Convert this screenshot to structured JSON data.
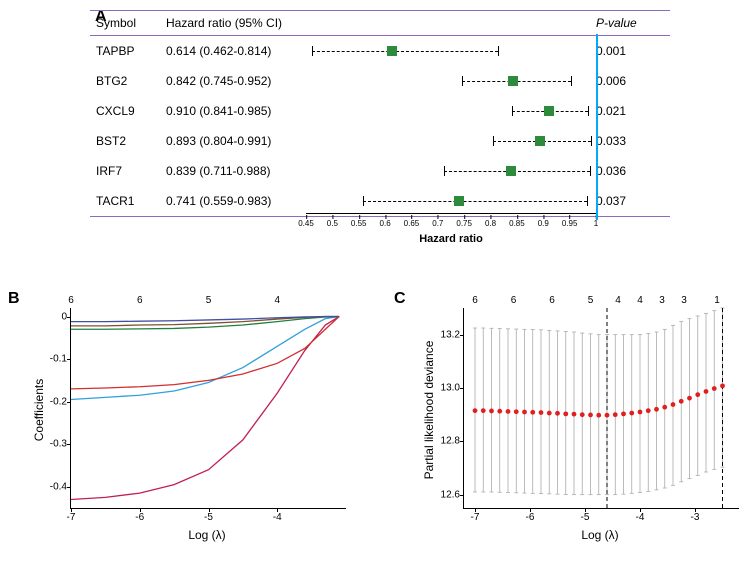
{
  "panelA": {
    "label": "A",
    "headers": {
      "symbol": "Symbol",
      "hr": "Hazard ratio (95% CI)",
      "pvalue": "P-value"
    },
    "axis_label": "Hazard ratio",
    "axis_min": 0.45,
    "axis_max": 1.0,
    "ref_value": 1.0,
    "ticks": [
      0.45,
      0.5,
      0.55,
      0.6,
      0.65,
      0.7,
      0.75,
      0.8,
      0.85,
      0.9,
      0.95,
      1.0
    ],
    "marker_color": "#2e8b3c",
    "rule_color": "#8a6bbd",
    "ref_color": "#00aaff",
    "rows": [
      {
        "symbol": "TAPBP",
        "hr_text": "0.614 (0.462-0.814)",
        "low": 0.462,
        "mid": 0.614,
        "high": 0.814,
        "pvalue": "0.001"
      },
      {
        "symbol": "BTG2",
        "hr_text": "0.842 (0.745-0.952)",
        "low": 0.745,
        "mid": 0.842,
        "high": 0.952,
        "pvalue": "0.006"
      },
      {
        "symbol": "CXCL9",
        "hr_text": "0.910 (0.841-0.985)",
        "low": 0.841,
        "mid": 0.91,
        "high": 0.985,
        "pvalue": "0.021"
      },
      {
        "symbol": "BST2",
        "hr_text": "0.893 (0.804-0.991)",
        "low": 0.804,
        "mid": 0.893,
        "high": 0.991,
        "pvalue": "0.033"
      },
      {
        "symbol": "IRF7",
        "hr_text": "0.839 (0.711-0.988)",
        "low": 0.711,
        "mid": 0.839,
        "high": 0.988,
        "pvalue": "0.036"
      },
      {
        "symbol": "TACR1",
        "hr_text": "0.741 (0.559-0.983)",
        "low": 0.559,
        "mid": 0.741,
        "high": 0.983,
        "pvalue": "0.037"
      }
    ]
  },
  "panelB": {
    "label": "B",
    "ylabel": "Coefficients",
    "xlabel": "Log (λ)",
    "xlim": [
      -7,
      -3
    ],
    "ylim": [
      -0.45,
      0.02
    ],
    "yticks": [
      0,
      -0.1,
      -0.2,
      -0.3,
      -0.4
    ],
    "xticks": [
      -7,
      -6,
      -5,
      -4
    ],
    "top_ticks": [
      {
        "x": -7,
        "label": "6"
      },
      {
        "x": -6,
        "label": "6"
      },
      {
        "x": -5,
        "label": "5"
      },
      {
        "x": -4,
        "label": "4"
      }
    ],
    "line_width": 1.3,
    "series": [
      {
        "color": "#c02050",
        "pts": [
          [
            -7,
            -0.43
          ],
          [
            -6.5,
            -0.425
          ],
          [
            -6,
            -0.415
          ],
          [
            -5.5,
            -0.395
          ],
          [
            -5,
            -0.36
          ],
          [
            -4.5,
            -0.29
          ],
          [
            -4,
            -0.18
          ],
          [
            -3.6,
            -0.08
          ],
          [
            -3.3,
            -0.02
          ],
          [
            -3.1,
            0
          ]
        ]
      },
      {
        "color": "#30a0e0",
        "pts": [
          [
            -7,
            -0.195
          ],
          [
            -6.5,
            -0.19
          ],
          [
            -6,
            -0.185
          ],
          [
            -5.5,
            -0.175
          ],
          [
            -5,
            -0.155
          ],
          [
            -4.5,
            -0.12
          ],
          [
            -4,
            -0.07
          ],
          [
            -3.6,
            -0.03
          ],
          [
            -3.3,
            -0.005
          ],
          [
            -3.1,
            0
          ]
        ]
      },
      {
        "color": "#d03030",
        "pts": [
          [
            -7,
            -0.17
          ],
          [
            -6.5,
            -0.168
          ],
          [
            -6,
            -0.165
          ],
          [
            -5.5,
            -0.16
          ],
          [
            -5,
            -0.15
          ],
          [
            -4.5,
            -0.135
          ],
          [
            -4,
            -0.11
          ],
          [
            -3.6,
            -0.075
          ],
          [
            -3.3,
            -0.03
          ],
          [
            -3.1,
            0
          ]
        ]
      },
      {
        "color": "#208040",
        "pts": [
          [
            -7,
            -0.03
          ],
          [
            -6.5,
            -0.03
          ],
          [
            -6,
            -0.029
          ],
          [
            -5.5,
            -0.028
          ],
          [
            -5,
            -0.025
          ],
          [
            -4.5,
            -0.02
          ],
          [
            -4,
            -0.012
          ],
          [
            -3.6,
            -0.005
          ],
          [
            -3.3,
            -0.001
          ],
          [
            -3.1,
            0
          ]
        ]
      },
      {
        "color": "#805030",
        "pts": [
          [
            -7,
            -0.022
          ],
          [
            -6.5,
            -0.022
          ],
          [
            -6,
            -0.02
          ],
          [
            -5.5,
            -0.019
          ],
          [
            -5,
            -0.016
          ],
          [
            -4.5,
            -0.012
          ],
          [
            -4,
            -0.006
          ],
          [
            -3.6,
            -0.002
          ],
          [
            -3.3,
            0
          ],
          [
            -3.1,
            0
          ]
        ]
      },
      {
        "color": "#4050a0",
        "pts": [
          [
            -7,
            -0.012
          ],
          [
            -6.5,
            -0.012
          ],
          [
            -6,
            -0.011
          ],
          [
            -5.5,
            -0.01
          ],
          [
            -5,
            -0.008
          ],
          [
            -4.5,
            -0.006
          ],
          [
            -4,
            -0.003
          ],
          [
            -3.6,
            -0.001
          ],
          [
            -3.3,
            0
          ],
          [
            -3.1,
            0
          ]
        ]
      }
    ]
  },
  "panelC": {
    "label": "C",
    "ylabel": "Partial likelihood deviance",
    "xlabel": "Log (λ)",
    "xlim": [
      -7.2,
      -2.2
    ],
    "ylim": [
      12.55,
      13.3
    ],
    "yticks": [
      12.6,
      12.8,
      13.0,
      13.2
    ],
    "xticks": [
      -7,
      -6,
      -5,
      -4,
      -3
    ],
    "top_ticks": [
      {
        "x": -7,
        "label": "6"
      },
      {
        "x": -6.3,
        "label": "6"
      },
      {
        "x": -5.6,
        "label": "6"
      },
      {
        "x": -4.9,
        "label": "5"
      },
      {
        "x": -4.4,
        "label": "4"
      },
      {
        "x": -4.0,
        "label": "4"
      },
      {
        "x": -3.6,
        "label": "3"
      },
      {
        "x": -3.2,
        "label": "3"
      },
      {
        "x": -2.6,
        "label": "1"
      }
    ],
    "vlines": [
      -4.6,
      -2.5
    ],
    "point_color": "#e02020",
    "error_color": "#aaaaaa",
    "point_radius": 2.4,
    "points": [
      {
        "x": -7.0,
        "y": 12.915,
        "lo": 12.61,
        "hi": 13.225
      },
      {
        "x": -6.85,
        "y": 12.915,
        "lo": 12.61,
        "hi": 13.225
      },
      {
        "x": -6.7,
        "y": 12.914,
        "lo": 12.61,
        "hi": 13.224
      },
      {
        "x": -6.55,
        "y": 12.913,
        "lo": 12.609,
        "hi": 13.223
      },
      {
        "x": -6.4,
        "y": 12.912,
        "lo": 12.608,
        "hi": 13.222
      },
      {
        "x": -6.25,
        "y": 12.911,
        "lo": 12.607,
        "hi": 13.221
      },
      {
        "x": -6.1,
        "y": 12.91,
        "lo": 12.606,
        "hi": 13.22
      },
      {
        "x": -5.95,
        "y": 12.909,
        "lo": 12.605,
        "hi": 13.219
      },
      {
        "x": -5.8,
        "y": 12.908,
        "lo": 12.604,
        "hi": 13.218
      },
      {
        "x": -5.65,
        "y": 12.906,
        "lo": 12.603,
        "hi": 13.216
      },
      {
        "x": -5.5,
        "y": 12.905,
        "lo": 12.602,
        "hi": 13.214
      },
      {
        "x": -5.35,
        "y": 12.903,
        "lo": 12.601,
        "hi": 13.212
      },
      {
        "x": -5.2,
        "y": 12.902,
        "lo": 12.6,
        "hi": 13.21
      },
      {
        "x": -5.05,
        "y": 12.9,
        "lo": 12.6,
        "hi": 13.206
      },
      {
        "x": -4.9,
        "y": 12.899,
        "lo": 12.6,
        "hi": 13.203
      },
      {
        "x": -4.75,
        "y": 12.898,
        "lo": 12.6,
        "hi": 13.2
      },
      {
        "x": -4.6,
        "y": 12.898,
        "lo": 12.6,
        "hi": 13.2
      },
      {
        "x": -4.45,
        "y": 12.9,
        "lo": 12.6,
        "hi": 13.2
      },
      {
        "x": -4.3,
        "y": 12.903,
        "lo": 12.602,
        "hi": 13.2
      },
      {
        "x": -4.15,
        "y": 12.906,
        "lo": 12.605,
        "hi": 13.2
      },
      {
        "x": -4.0,
        "y": 12.91,
        "lo": 12.608,
        "hi": 13.2
      },
      {
        "x": -3.85,
        "y": 12.915,
        "lo": 12.612,
        "hi": 13.205
      },
      {
        "x": -3.7,
        "y": 12.92,
        "lo": 12.618,
        "hi": 13.21
      },
      {
        "x": -3.55,
        "y": 12.928,
        "lo": 12.625,
        "hi": 13.22
      },
      {
        "x": -3.4,
        "y": 12.938,
        "lo": 12.635,
        "hi": 13.235
      },
      {
        "x": -3.25,
        "y": 12.95,
        "lo": 12.648,
        "hi": 13.25
      },
      {
        "x": -3.1,
        "y": 12.962,
        "lo": 12.66,
        "hi": 13.26
      },
      {
        "x": -2.95,
        "y": 12.975,
        "lo": 12.672,
        "hi": 13.27
      },
      {
        "x": -2.8,
        "y": 12.987,
        "lo": 12.685,
        "hi": 13.28
      },
      {
        "x": -2.65,
        "y": 12.998,
        "lo": 12.695,
        "hi": 13.29
      },
      {
        "x": -2.5,
        "y": 13.008,
        "lo": 12.703,
        "hi": 13.3
      }
    ]
  }
}
